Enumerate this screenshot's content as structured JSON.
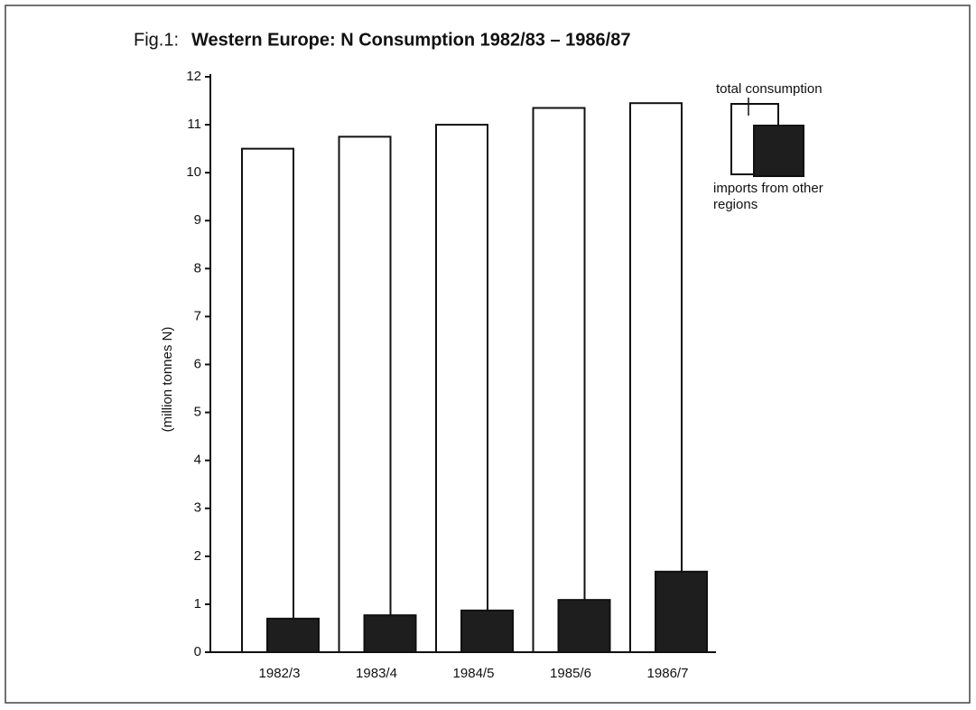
{
  "chart_data": {
    "type": "bar",
    "figure_label": "Fig.1:",
    "title": "Western Europe: N Consumption 1982/83 – 1986/87",
    "y_label": "(million tonnes N)",
    "categories": [
      "1982/3",
      "1983/4",
      "1984/5",
      "1985/6",
      "1986/7"
    ],
    "series": [
      {
        "name": "total consumption",
        "color": "#ffffff",
        "values": [
          10.5,
          10.75,
          11.0,
          11.35,
          11.45
        ]
      },
      {
        "name": "imports from other regions",
        "color": "#1e1e1e",
        "values": [
          0.7,
          0.77,
          0.87,
          1.09,
          1.68
        ]
      }
    ],
    "ylim": [
      0,
      12
    ],
    "yticks": [
      0,
      1,
      2,
      3,
      4,
      5,
      6,
      7,
      8,
      9,
      10,
      11,
      12
    ],
    "grid": false
  }
}
